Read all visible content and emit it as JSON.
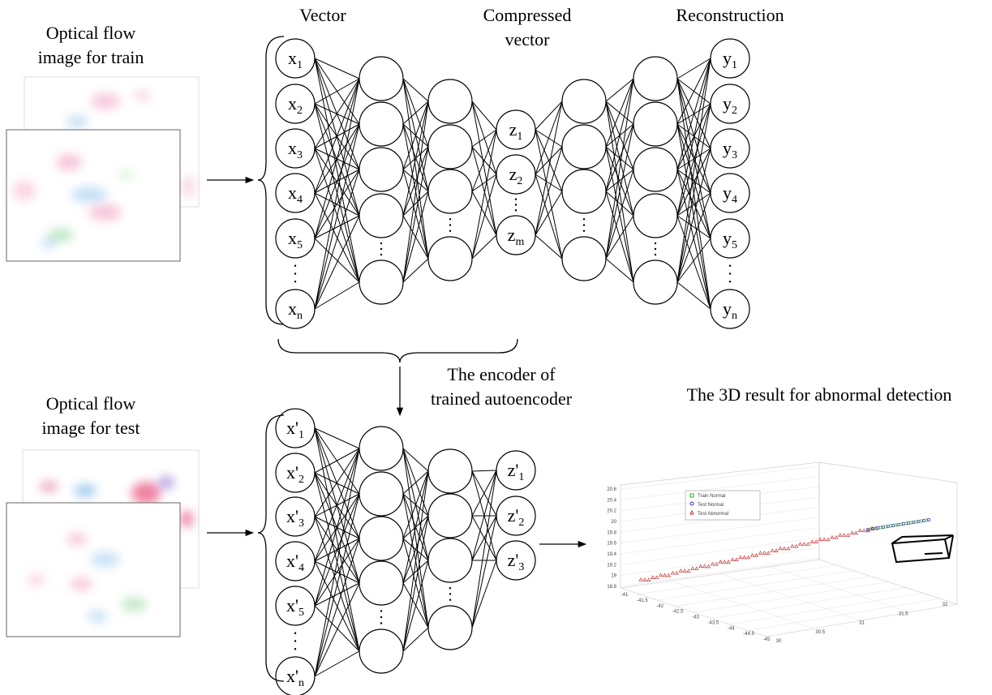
{
  "labels": {
    "train_image": [
      "Optical flow",
      "image for train"
    ],
    "vector": "Vector",
    "compressed": [
      "Compressed",
      "vector"
    ],
    "reconstruction": "Reconstruction",
    "encoder": [
      "The encoder of",
      "trained autoencoder"
    ],
    "result": "The 3D result for abnormal detection",
    "test_image": [
      "Optical flow",
      "image for test"
    ]
  },
  "top_network": {
    "input": [
      {
        "letter": "x",
        "sub": "1"
      },
      {
        "letter": "x",
        "sub": "2"
      },
      {
        "letter": "x",
        "sub": "3"
      },
      {
        "letter": "x",
        "sub": "4"
      },
      {
        "letter": "x",
        "sub": "5"
      },
      {
        "letter": "x",
        "sub": "n"
      }
    ],
    "code": [
      {
        "letter": "z",
        "sub": "1"
      },
      {
        "letter": "z",
        "sub": "2"
      },
      {
        "letter": "z",
        "sub": "m"
      }
    ],
    "output": [
      {
        "letter": "y",
        "sub": "1"
      },
      {
        "letter": "y",
        "sub": "2"
      },
      {
        "letter": "y",
        "sub": "3"
      },
      {
        "letter": "y",
        "sub": "4"
      },
      {
        "letter": "y",
        "sub": "5"
      },
      {
        "letter": "y",
        "sub": "n"
      }
    ]
  },
  "bottom_network": {
    "input": [
      {
        "letter": "x'",
        "sub": "1"
      },
      {
        "letter": "x'",
        "sub": "2"
      },
      {
        "letter": "x'",
        "sub": "3"
      },
      {
        "letter": "x'",
        "sub": "4"
      },
      {
        "letter": "x'",
        "sub": "5"
      },
      {
        "letter": "x'",
        "sub": "n"
      }
    ],
    "code": [
      {
        "letter": "z'",
        "sub": "1"
      },
      {
        "letter": "z'",
        "sub": "2"
      },
      {
        "letter": "z'",
        "sub": "3"
      }
    ]
  },
  "plot": {
    "legend": [
      "Train Normal",
      "Test Normal",
      "Test Abnormal"
    ],
    "z_ticks": [
      "20.6",
      "20.4",
      "20.2",
      "20",
      "19.8",
      "19.6",
      "19.4",
      "19.2",
      "19",
      "18.8"
    ],
    "x_ticks": [
      "-41",
      "-41.5",
      "-42",
      "-42.5",
      "-43",
      "-43.5",
      "-44",
      "-44.5",
      "-45"
    ],
    "y_ticks": [
      "30",
      "30.5",
      "31",
      "31.5",
      "32"
    ]
  }
}
